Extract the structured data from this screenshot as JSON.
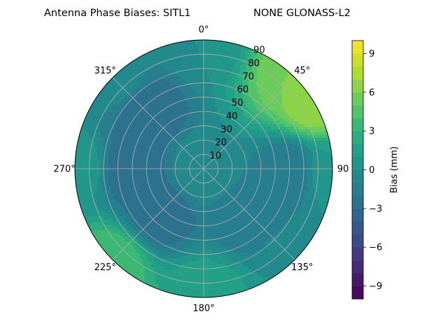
{
  "chart_data": {
    "type": "polar-contour",
    "title": "Antenna Phase Biases: SITL1",
    "subtitle": "NONE GLONASS-L2",
    "radial_axis": {
      "ticks": [
        10,
        20,
        30,
        40,
        50,
        60,
        70,
        80,
        90
      ],
      "tick_labels": [
        "10",
        "20",
        "30",
        "40",
        "50",
        "60",
        "70",
        "80",
        "90"
      ],
      "range": [
        0,
        90
      ]
    },
    "angular_axis": {
      "zero_location": "top",
      "direction": "clockwise",
      "ticks_deg": [
        0,
        45,
        90,
        135,
        180,
        225,
        270,
        315
      ],
      "tick_labels": [
        "0°",
        "45°",
        "90",
        "135°",
        "180°",
        "225°",
        "270°",
        "315°"
      ]
    },
    "grid": true,
    "colorbar": {
      "label": "Bias (mm)",
      "range": [
        -10,
        10
      ],
      "ticks": [
        -9,
        -6,
        -3,
        0,
        3,
        6,
        9
      ],
      "tick_labels": [
        "−9",
        "−6",
        "−3",
        "0",
        "3",
        "6",
        "9"
      ],
      "levels": 20,
      "colormap": "viridis"
    },
    "field_anchor_values": [
      {
        "azimuth": 0,
        "zenith": 90,
        "bias": 0
      },
      {
        "azimuth": 45,
        "zenith": 90,
        "bias": 6
      },
      {
        "azimuth": 60,
        "zenith": 90,
        "bias": 7
      },
      {
        "azimuth": 90,
        "zenith": 90,
        "bias": 1
      },
      {
        "azimuth": 135,
        "zenith": 90,
        "bias": 0
      },
      {
        "azimuth": 180,
        "zenith": 90,
        "bias": 2
      },
      {
        "azimuth": 225,
        "zenith": 90,
        "bias": 4
      },
      {
        "azimuth": 270,
        "zenith": 90,
        "bias": 1
      },
      {
        "azimuth": 315,
        "zenith": 90,
        "bias": 0
      },
      {
        "azimuth": 315,
        "zenith": 55,
        "bias": -3
      },
      {
        "azimuth": 270,
        "zenith": 50,
        "bias": -3
      },
      {
        "azimuth": 225,
        "zenith": 45,
        "bias": -3
      },
      {
        "azimuth": 90,
        "zenith": 60,
        "bias": -2
      },
      {
        "azimuth": 135,
        "zenith": 45,
        "bias": -2
      },
      {
        "azimuth": 0,
        "zenith": 0,
        "bias": 0
      }
    ]
  }
}
